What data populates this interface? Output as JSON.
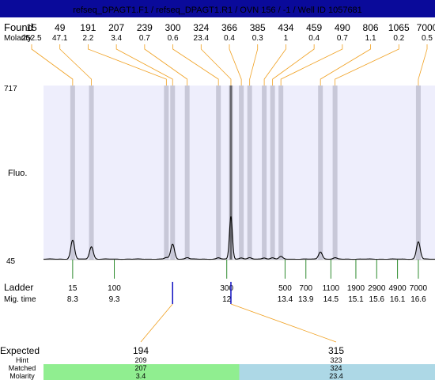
{
  "header": {
    "title": "refseq_DPAGT1.F1 / refseq_DPAGT1.R1 / OVN 156 / -1 / Well ID 1057681",
    "bg_color": "#0a0a9a",
    "text_color": "#ffffff"
  },
  "labels": {
    "found": "Found",
    "molarity": "Molarity",
    "fluo": "Fluo.",
    "ladder": "Ladder",
    "mig_time": "Mig. time",
    "expected": "Expected",
    "hint": "Hint",
    "matched": "Matched",
    "molarity_bottom": "Molarity"
  },
  "colors": {
    "plot_bg": "#eeeefc",
    "band": "#c8c8d8",
    "band_major": "#000000",
    "orange": "#f0a020",
    "green_tick": "#2e8b2e",
    "blue": "#1010c0",
    "match_green": "#90ee90",
    "match_blue": "#add8e6",
    "trace": "#000000"
  },
  "chart_data": {
    "type": "electropherogram",
    "title": "refseq_DPAGT1.F1 / refseq_DPAGT1.R1 / OVN 156 / -1 / Well ID 1057681",
    "ylabel": "Fluo.",
    "ylim": [
      45,
      717
    ],
    "y_ticks": [
      "717",
      "45"
    ],
    "found_peaks": [
      {
        "size": "15",
        "molarity": "252.5",
        "mig_time": 8.3,
        "height": 118
      },
      {
        "size": "49",
        "molarity": "47.1",
        "mig_time": 8.75,
        "height": 93
      },
      {
        "size": "191",
        "molarity": "2.2",
        "mig_time": 10.55,
        "height": 51
      },
      {
        "size": "207",
        "molarity": "3.4",
        "mig_time": 10.7,
        "height": 103
      },
      {
        "size": "239",
        "molarity": "0.7",
        "mig_time": 11.05,
        "height": 51
      },
      {
        "size": "300",
        "molarity": "0.6",
        "mig_time": 11.8,
        "height": 50
      },
      {
        "size": "324",
        "molarity": "23.4",
        "mig_time": 12.1,
        "height": 210
      },
      {
        "size": "366",
        "molarity": "0.4",
        "mig_time": 12.35,
        "height": 50
      },
      {
        "size": "385",
        "molarity": "0.3",
        "mig_time": 12.55,
        "height": 50
      },
      {
        "size": "434",
        "molarity": "1",
        "mig_time": 12.9,
        "height": 50
      },
      {
        "size": "459",
        "molarity": "0.4",
        "mig_time": 13.1,
        "height": 50
      },
      {
        "size": "490",
        "molarity": "0.7",
        "mig_time": 13.3,
        "height": 55
      },
      {
        "size": "806",
        "molarity": "1.1",
        "mig_time": 14.25,
        "height": 73
      },
      {
        "size": "1065",
        "molarity": "0.2",
        "mig_time": 14.6,
        "height": 50
      },
      {
        "size": "7000",
        "molarity": "0.5",
        "mig_time": 16.6,
        "height": 112
      }
    ],
    "ladder": [
      {
        "size": "15",
        "mig_time": "8.3"
      },
      {
        "size": "100",
        "mig_time": "9.3"
      },
      {
        "size": "300",
        "mig_time": "12"
      },
      {
        "size": "500",
        "mig_time": "13.4"
      },
      {
        "size": "700",
        "mig_time": "13.9"
      },
      {
        "size": "1100",
        "mig_time": "14.5"
      },
      {
        "size": "1900",
        "mig_time": "15.1"
      },
      {
        "size": "2900",
        "mig_time": "15.6"
      },
      {
        "size": "4900",
        "mig_time": "16.1"
      },
      {
        "size": "7000",
        "mig_time": "16.6"
      }
    ],
    "expected": [
      {
        "size": "194",
        "hint": "209",
        "matched": "207",
        "molarity": "3.4",
        "color": "#90ee90",
        "found_index": 3
      },
      {
        "size": "315",
        "hint": "323",
        "matched": "324",
        "molarity": "23.4",
        "color": "#add8e6",
        "found_index": 6
      }
    ]
  }
}
